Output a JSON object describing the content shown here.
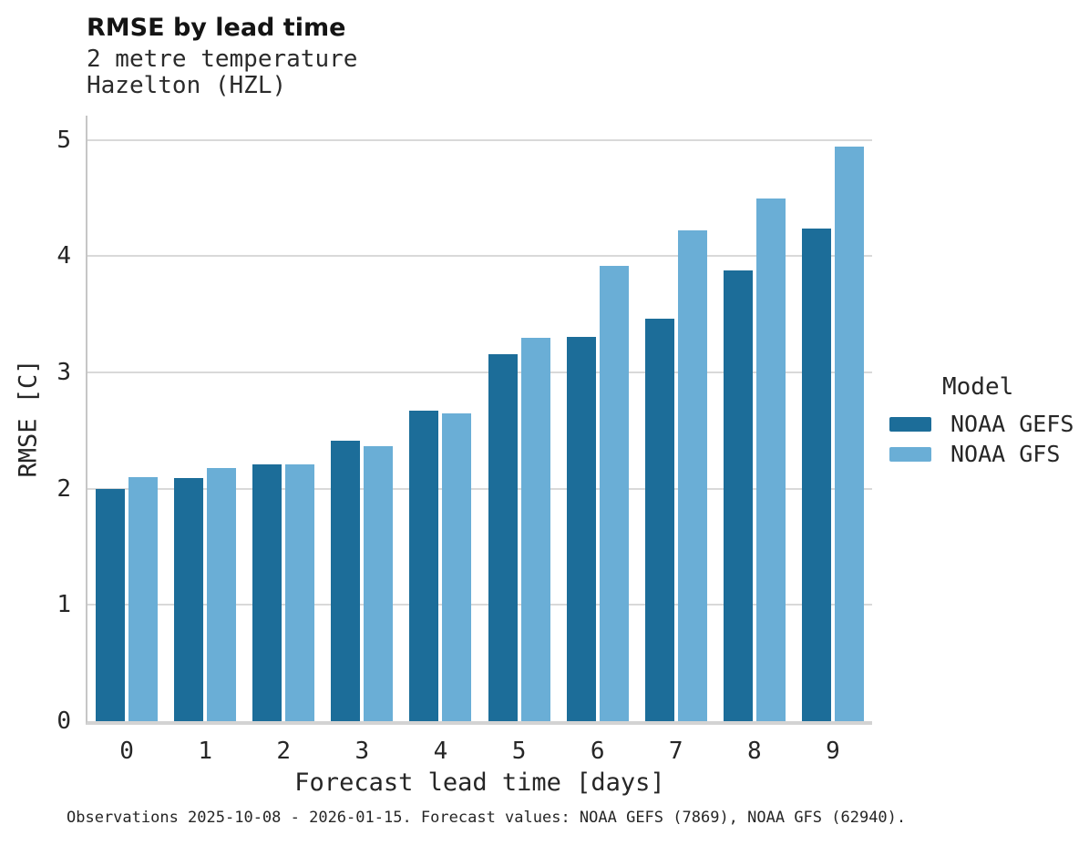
{
  "header": {
    "title": "RMSE by lead time",
    "subtitle1": "2 metre temperature",
    "subtitle2": "Hazelton (HZL)"
  },
  "chart_data": {
    "type": "bar",
    "title": "RMSE by lead time",
    "subtitle": [
      "2 metre temperature",
      "Hazelton (HZL)"
    ],
    "categories": [
      "0",
      "1",
      "2",
      "3",
      "4",
      "5",
      "6",
      "7",
      "8",
      "9"
    ],
    "series": [
      {
        "name": "NOAA GEFS",
        "color": "#1c6d99",
        "values": [
          2.0,
          2.09,
          2.21,
          2.41,
          2.67,
          3.16,
          3.31,
          3.46,
          3.88,
          4.24
        ]
      },
      {
        "name": "NOAA GFS",
        "color": "#6aaed6",
        "values": [
          2.1,
          2.18,
          2.21,
          2.37,
          2.65,
          3.3,
          3.92,
          4.22,
          4.5,
          4.94
        ]
      }
    ],
    "xlabel": "Forecast lead time [days]",
    "ylabel": "RMSE [C]",
    "ylim": [
      0,
      5.21
    ],
    "yticks": [
      0,
      1,
      2,
      3,
      4,
      5
    ],
    "grid": true,
    "legend_position": "right",
    "legend_title": "Model"
  },
  "legend": {
    "title": "Model",
    "items": [
      {
        "label": "NOAA GEFS",
        "color": "#1c6d99"
      },
      {
        "label": "NOAA GFS",
        "color": "#6aaed6"
      }
    ]
  },
  "caption": "Observations 2025-10-08 - 2026-01-15. Forecast values: NOAA GEFS (7869), NOAA GFS (62940).",
  "colors": {
    "gefs": "#1c6d99",
    "gfs": "#6aaed6",
    "gridline": "#d9d9d9",
    "spine": "#c6c6c6",
    "text": "#262626"
  }
}
